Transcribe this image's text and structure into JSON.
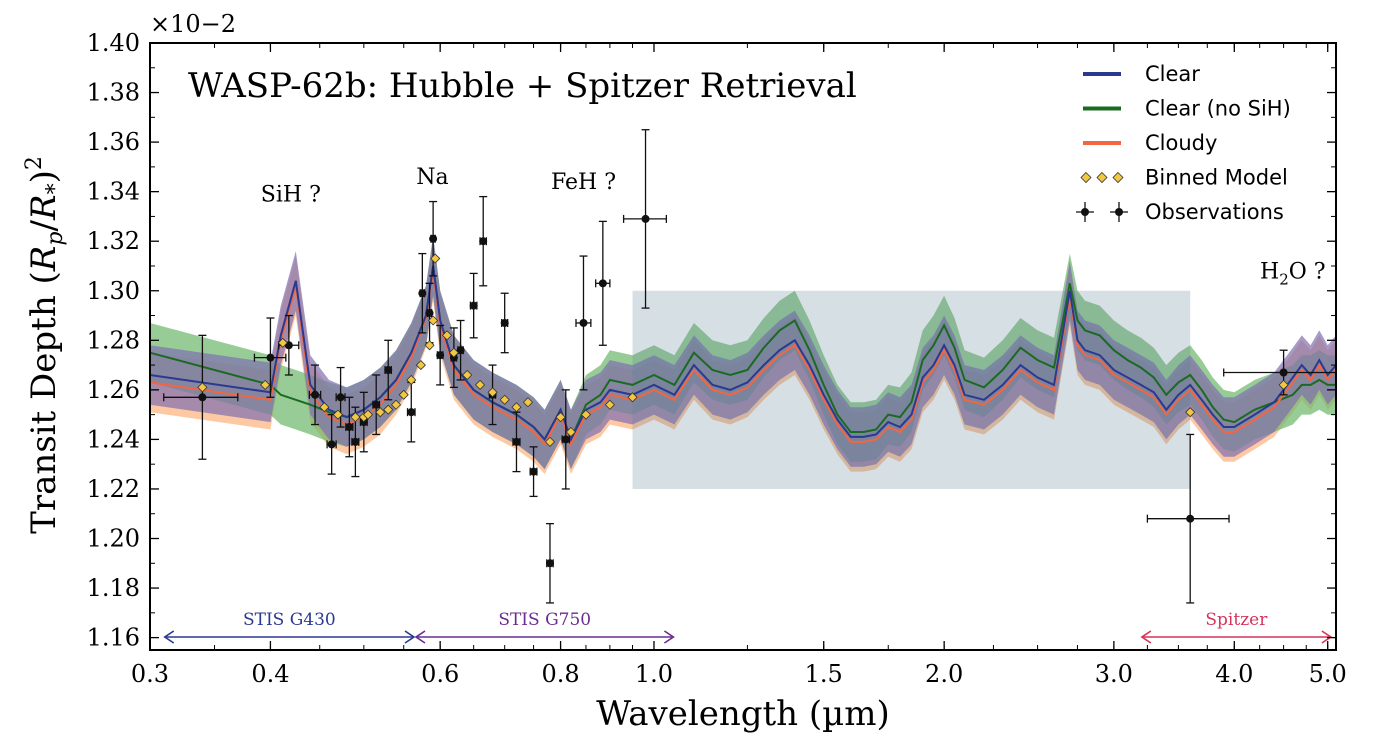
{
  "chart_data": {
    "type": "line",
    "title": "WASP-62b: Hubble + Spitzer Retrieval",
    "xlabel": "Wavelength (µm)",
    "ylabel": "Transit Depth (R_p/R_*)^2",
    "ylabel_parts": {
      "main": "Transit Depth ",
      "base_p": "R",
      "sub_p": "p",
      "slash": "/",
      "base_s": "R",
      "sub_s": "*",
      "exp": "2"
    },
    "y_exponent_label": "×10−2",
    "x_scale": "log",
    "xlim": [
      0.3,
      5.1
    ],
    "ylim": [
      1.155,
      1.4
    ],
    "x_ticks": [
      0.3,
      0.4,
      0.6,
      0.8,
      1.0,
      1.5,
      2.0,
      3.0,
      4.0,
      5.0
    ],
    "x_tick_labels": [
      "0.3",
      "0.4",
      "0.6",
      "0.8",
      "1.0",
      "1.5",
      "2.0",
      "3.0",
      "4.0",
      "5.0"
    ],
    "y_ticks": [
      1.16,
      1.18,
      1.2,
      1.22,
      1.24,
      1.26,
      1.28,
      1.3,
      1.32,
      1.34,
      1.36,
      1.38,
      1.4
    ],
    "y_tick_labels": [
      "1.16",
      "1.18",
      "1.20",
      "1.22",
      "1.24",
      "1.26",
      "1.28",
      "1.30",
      "1.32",
      "1.34",
      "1.36",
      "1.38",
      "1.40"
    ],
    "legend": {
      "position": "top-right",
      "entries": [
        {
          "label": "Clear",
          "kind": "line",
          "color": "#2b3990"
        },
        {
          "label": "Clear (no SiH)",
          "kind": "line",
          "color": "#1a6b21"
        },
        {
          "label": "Cloudy",
          "kind": "line",
          "color": "#f26641"
        },
        {
          "label": "Binned Model",
          "kind": "diamond",
          "color": "#f2c744"
        },
        {
          "label": "Observations",
          "kind": "errorbar",
          "color": "#111111"
        }
      ]
    },
    "annotations": [
      {
        "text": "SiH ?",
        "x": 0.42,
        "y": 1.336
      },
      {
        "text": "Na",
        "x": 0.589,
        "y": 1.343
      },
      {
        "text": "FeH ?",
        "x": 0.845,
        "y": 1.341
      },
      {
        "text_base": "H",
        "text_sub": "2",
        "text_rest": "O ?",
        "x": 4.6,
        "y": 1.305
      }
    ],
    "instruments": [
      {
        "label": "STIS G430",
        "x_start": 0.31,
        "x_end": 0.565,
        "color": "#2b3990"
      },
      {
        "label": "STIS G750",
        "x_start": 0.565,
        "x_end": 1.05,
        "color": "#6a2c91"
      },
      {
        "label": "Spitzer",
        "x_start": 3.2,
        "x_end": 5.05,
        "color": "#d6345a"
      }
    ],
    "model_x": [
      0.3,
      0.4,
      0.41,
      0.425,
      0.44,
      0.46,
      0.48,
      0.5,
      0.52,
      0.54,
      0.56,
      0.58,
      0.59,
      0.6,
      0.62,
      0.65,
      0.68,
      0.72,
      0.75,
      0.77,
      0.8,
      0.82,
      0.85,
      0.88,
      0.9,
      0.95,
      1.0,
      1.05,
      1.1,
      1.15,
      1.2,
      1.25,
      1.3,
      1.35,
      1.4,
      1.45,
      1.5,
      1.55,
      1.6,
      1.65,
      1.7,
      1.75,
      1.8,
      1.85,
      1.9,
      1.95,
      2.0,
      2.05,
      2.1,
      2.2,
      2.3,
      2.4,
      2.5,
      2.6,
      2.7,
      2.75,
      2.8,
      2.9,
      3.0,
      3.1,
      3.2,
      3.3,
      3.4,
      3.5,
      3.6,
      3.7,
      3.8,
      3.9,
      4.0,
      4.2,
      4.4,
      4.6,
      4.7,
      4.8,
      4.9,
      5.0,
      5.1
    ],
    "series": [
      {
        "name": "Clear",
        "color": "#2b3990",
        "band_color": "#7f6fb0",
        "values": [
          1.266,
          1.259,
          1.282,
          1.304,
          1.262,
          1.252,
          1.249,
          1.252,
          1.257,
          1.264,
          1.275,
          1.29,
          1.31,
          1.288,
          1.27,
          1.26,
          1.255,
          1.25,
          1.245,
          1.24,
          1.252,
          1.24,
          1.252,
          1.255,
          1.26,
          1.258,
          1.262,
          1.258,
          1.27,
          1.262,
          1.26,
          1.263,
          1.27,
          1.276,
          1.28,
          1.27,
          1.258,
          1.248,
          1.241,
          1.241,
          1.242,
          1.247,
          1.245,
          1.25,
          1.265,
          1.27,
          1.278,
          1.27,
          1.258,
          1.256,
          1.262,
          1.27,
          1.265,
          1.262,
          1.3,
          1.28,
          1.276,
          1.274,
          1.268,
          1.265,
          1.262,
          1.259,
          1.252,
          1.258,
          1.262,
          1.256,
          1.25,
          1.245,
          1.245,
          1.25,
          1.255,
          1.265,
          1.27,
          1.266,
          1.272,
          1.266,
          1.27
        ]
      },
      {
        "name": "Clear (no SiH)",
        "color": "#1a6b21",
        "band_color": "#6cb66a",
        "values": [
          1.275,
          1.262,
          1.258,
          1.256,
          1.254,
          1.251,
          1.249,
          1.252,
          1.257,
          1.264,
          1.275,
          1.29,
          1.31,
          1.288,
          1.27,
          1.26,
          1.255,
          1.25,
          1.245,
          1.24,
          1.252,
          1.24,
          1.254,
          1.258,
          1.264,
          1.262,
          1.266,
          1.262,
          1.275,
          1.268,
          1.266,
          1.268,
          1.277,
          1.284,
          1.288,
          1.276,
          1.262,
          1.25,
          1.243,
          1.243,
          1.244,
          1.25,
          1.249,
          1.255,
          1.272,
          1.278,
          1.286,
          1.277,
          1.264,
          1.261,
          1.268,
          1.277,
          1.272,
          1.269,
          1.303,
          1.288,
          1.284,
          1.282,
          1.276,
          1.272,
          1.269,
          1.265,
          1.258,
          1.263,
          1.266,
          1.26,
          1.253,
          1.248,
          1.247,
          1.252,
          1.255,
          1.258,
          1.262,
          1.262,
          1.264,
          1.262,
          1.262
        ]
      },
      {
        "name": "Cloudy",
        "color": "#f26641",
        "band_color": "#fdb27a",
        "values": [
          1.263,
          1.256,
          1.28,
          1.302,
          1.259,
          1.249,
          1.246,
          1.249,
          1.254,
          1.262,
          1.273,
          1.289,
          1.308,
          1.286,
          1.268,
          1.258,
          1.253,
          1.248,
          1.243,
          1.238,
          1.25,
          1.238,
          1.25,
          1.253,
          1.258,
          1.256,
          1.26,
          1.256,
          1.268,
          1.26,
          1.258,
          1.261,
          1.268,
          1.274,
          1.278,
          1.268,
          1.256,
          1.246,
          1.239,
          1.239,
          1.24,
          1.245,
          1.243,
          1.248,
          1.263,
          1.268,
          1.276,
          1.268,
          1.256,
          1.254,
          1.26,
          1.268,
          1.263,
          1.26,
          1.298,
          1.278,
          1.274,
          1.272,
          1.266,
          1.263,
          1.26,
          1.257,
          1.25,
          1.256,
          1.26,
          1.254,
          1.248,
          1.243,
          1.243,
          1.248,
          1.253,
          1.263,
          1.268,
          1.264,
          1.27,
          1.264,
          1.268
        ]
      }
    ],
    "band_halfwidth": 0.012,
    "binned_model": [
      [
        0.34,
        1.261
      ],
      [
        0.395,
        1.262
      ],
      [
        0.412,
        1.279
      ],
      [
        0.455,
        1.253
      ],
      [
        0.47,
        1.25
      ],
      [
        0.49,
        1.249
      ],
      [
        0.5,
        1.249
      ],
      [
        0.505,
        1.25
      ],
      [
        0.52,
        1.251
      ],
      [
        0.53,
        1.252
      ],
      [
        0.54,
        1.254
      ],
      [
        0.55,
        1.258
      ],
      [
        0.56,
        1.264
      ],
      [
        0.573,
        1.27
      ],
      [
        0.585,
        1.278
      ],
      [
        0.59,
        1.288
      ],
      [
        0.593,
        1.313
      ],
      [
        0.61,
        1.282
      ],
      [
        0.62,
        1.275
      ],
      [
        0.64,
        1.266
      ],
      [
        0.66,
        1.262
      ],
      [
        0.68,
        1.259
      ],
      [
        0.7,
        1.256
      ],
      [
        0.72,
        1.253
      ],
      [
        0.74,
        1.255
      ],
      [
        0.78,
        1.239
      ],
      [
        0.8,
        1.249
      ],
      [
        0.82,
        1.243
      ],
      [
        0.85,
        1.25
      ],
      [
        0.9,
        1.254
      ],
      [
        0.95,
        1.257
      ],
      [
        3.6,
        1.251
      ],
      [
        4.5,
        1.262
      ]
    ],
    "observations": [
      {
        "x": 0.34,
        "y": 1.257,
        "xerr": 0.03,
        "yerr": 0.025
      },
      {
        "x": 0.4,
        "y": 1.273,
        "xerr": 0.015,
        "yerr": 0.016
      },
      {
        "x": 0.418,
        "y": 1.278,
        "xerr": 0.01,
        "yerr": 0.012
      },
      {
        "x": 0.445,
        "y": 1.258,
        "xerr": 0.006,
        "yerr": 0.012
      },
      {
        "x": 0.463,
        "y": 1.238,
        "xerr": 0.005,
        "yerr": 0.012
      },
      {
        "x": 0.473,
        "y": 1.257,
        "xerr": 0.005,
        "yerr": 0.012
      },
      {
        "x": 0.483,
        "y": 1.245,
        "xerr": 0.004,
        "yerr": 0.012
      },
      {
        "x": 0.49,
        "y": 1.239,
        "xerr": 0.004,
        "yerr": 0.014
      },
      {
        "x": 0.5,
        "y": 1.247,
        "xerr": 0.004,
        "yerr": 0.012
      },
      {
        "x": 0.515,
        "y": 1.254,
        "xerr": 0.004,
        "yerr": 0.012
      },
      {
        "x": 0.53,
        "y": 1.268,
        "xerr": 0.004,
        "yerr": 0.012
      },
      {
        "x": 0.56,
        "y": 1.251,
        "xerr": 0.005,
        "yerr": 0.012
      },
      {
        "x": 0.575,
        "y": 1.299,
        "xerr": 0.003,
        "yerr": 0.016
      },
      {
        "x": 0.585,
        "y": 1.291,
        "xerr": 0.003,
        "yerr": 0.012
      },
      {
        "x": 0.59,
        "y": 1.321,
        "xerr": 0.003,
        "yerr": 0.015
      },
      {
        "x": 0.6,
        "y": 1.274,
        "xerr": 0.004,
        "yerr": 0.012
      },
      {
        "x": 0.62,
        "y": 1.273,
        "xerr": 0.004,
        "yerr": 0.012
      },
      {
        "x": 0.63,
        "y": 1.276,
        "xerr": 0.004,
        "yerr": 0.012
      },
      {
        "x": 0.65,
        "y": 1.294,
        "xerr": 0.005,
        "yerr": 0.013
      },
      {
        "x": 0.665,
        "y": 1.32,
        "xerr": 0.005,
        "yerr": 0.018
      },
      {
        "x": 0.68,
        "y": 1.258,
        "xerr": 0.005,
        "yerr": 0.012
      },
      {
        "x": 0.7,
        "y": 1.287,
        "xerr": 0.005,
        "yerr": 0.012
      },
      {
        "x": 0.72,
        "y": 1.239,
        "xerr": 0.006,
        "yerr": 0.012
      },
      {
        "x": 0.75,
        "y": 1.227,
        "xerr": 0.006,
        "yerr": 0.01
      },
      {
        "x": 0.78,
        "y": 1.19,
        "xerr": 0.006,
        "yerr": 0.016
      },
      {
        "x": 0.81,
        "y": 1.24,
        "xerr": 0.007,
        "yerr": 0.02
      },
      {
        "x": 0.845,
        "y": 1.287,
        "xerr": 0.015,
        "yerr": 0.027
      },
      {
        "x": 0.885,
        "y": 1.303,
        "xerr": 0.015,
        "yerr": 0.025
      },
      {
        "x": 0.98,
        "y": 1.329,
        "xerr": 0.05,
        "yerr": 0.036
      },
      {
        "x": 3.6,
        "y": 1.208,
        "xerr": 0.35,
        "yerr": 0.034
      },
      {
        "x": 4.5,
        "y": 1.267,
        "xerr": 0.6,
        "yerr": 0.009
      }
    ]
  }
}
